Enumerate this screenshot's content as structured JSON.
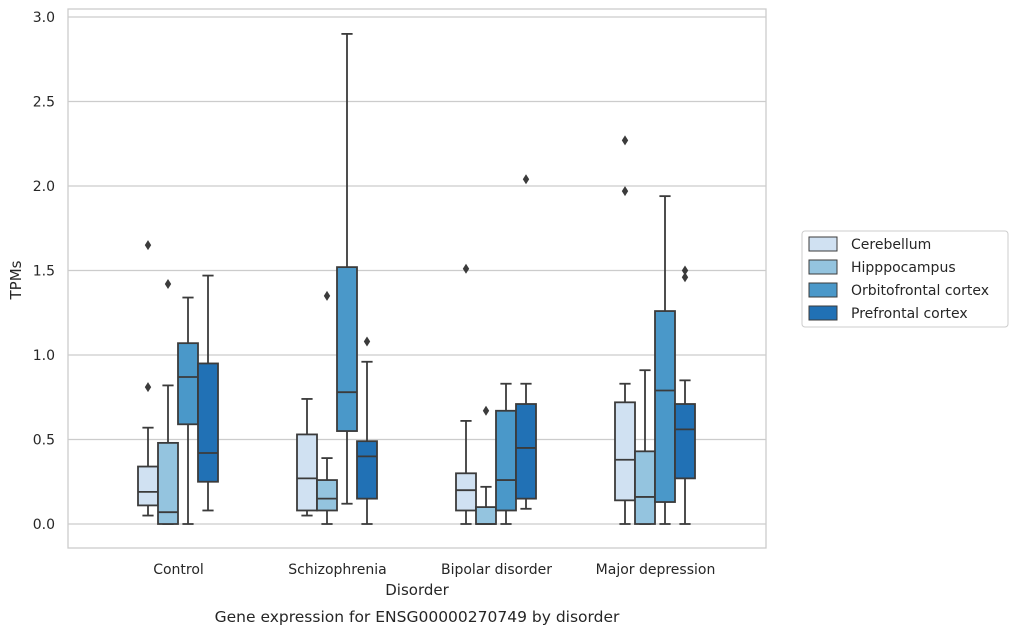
{
  "chart_data": {
    "type": "box",
    "caption": "Gene expression for ENSG00000270749 by disorder",
    "xlabel": "Disorder",
    "ylabel": "TPMs",
    "ylim": [
      -0.14,
      3.05
    ],
    "yticks": [
      0.0,
      0.5,
      1.0,
      1.5,
      2.0,
      2.5,
      3.0
    ],
    "ytick_labels": [
      "0.0",
      "0.5",
      "1.0",
      "1.5",
      "2.0",
      "2.5",
      "3.0"
    ],
    "grid": "horizontal",
    "legend_position": "right",
    "categories": [
      "Control",
      "Schizophrenia",
      "Bipolar disorder",
      "Major depression"
    ],
    "series": [
      {
        "name": "Cerebellum",
        "color": "#d0e1f2",
        "boxes": [
          {
            "whisker_low": 0.05,
            "q1": 0.11,
            "median": 0.19,
            "q3": 0.34,
            "whisker_high": 0.57,
            "outliers": [
              0.81,
              1.65
            ]
          },
          {
            "whisker_low": 0.05,
            "q1": 0.08,
            "median": 0.27,
            "q3": 0.53,
            "whisker_high": 0.74,
            "outliers": []
          },
          {
            "whisker_low": 0.0,
            "q1": 0.08,
            "median": 0.2,
            "q3": 0.3,
            "whisker_high": 0.61,
            "outliers": [
              1.51
            ]
          },
          {
            "whisker_low": 0.0,
            "q1": 0.14,
            "median": 0.38,
            "q3": 0.72,
            "whisker_high": 0.83,
            "outliers": [
              1.97,
              2.27
            ]
          }
        ]
      },
      {
        "name": "Hipppocampus",
        "color": "#94c4df",
        "boxes": [
          {
            "whisker_low": 0.0,
            "q1": 0.0,
            "median": 0.07,
            "q3": 0.48,
            "whisker_high": 0.82,
            "outliers": [
              1.42
            ]
          },
          {
            "whisker_low": 0.0,
            "q1": 0.08,
            "median": 0.15,
            "q3": 0.26,
            "whisker_high": 0.39,
            "outliers": [
              1.35
            ]
          },
          {
            "whisker_low": 0.0,
            "q1": 0.0,
            "median": 0.0,
            "q3": 0.1,
            "whisker_high": 0.22,
            "outliers": [
              0.67
            ]
          },
          {
            "whisker_low": 0.0,
            "q1": 0.0,
            "median": 0.16,
            "q3": 0.43,
            "whisker_high": 0.91,
            "outliers": []
          }
        ]
      },
      {
        "name": "Orbitofrontal cortex",
        "color": "#4a98c9",
        "boxes": [
          {
            "whisker_low": 0.0,
            "q1": 0.59,
            "median": 0.87,
            "q3": 1.07,
            "whisker_high": 1.34,
            "outliers": []
          },
          {
            "whisker_low": 0.12,
            "q1": 0.55,
            "median": 0.78,
            "q3": 1.52,
            "whisker_high": 2.9,
            "outliers": []
          },
          {
            "whisker_low": 0.0,
            "q1": 0.08,
            "median": 0.26,
            "q3": 0.67,
            "whisker_high": 0.83,
            "outliers": []
          },
          {
            "whisker_low": 0.0,
            "q1": 0.13,
            "median": 0.79,
            "q3": 1.26,
            "whisker_high": 1.94,
            "outliers": []
          }
        ]
      },
      {
        "name": "Prefrontal cortex",
        "color": "#2171b5",
        "boxes": [
          {
            "whisker_low": 0.08,
            "q1": 0.25,
            "median": 0.42,
            "q3": 0.95,
            "whisker_high": 1.47,
            "outliers": []
          },
          {
            "whisker_low": 0.0,
            "q1": 0.15,
            "median": 0.4,
            "q3": 0.49,
            "whisker_high": 0.96,
            "outliers": [
              1.08
            ]
          },
          {
            "whisker_low": 0.09,
            "q1": 0.15,
            "median": 0.45,
            "q3": 0.71,
            "whisker_high": 0.83,
            "outliers": [
              2.04
            ]
          },
          {
            "whisker_low": 0.0,
            "q1": 0.27,
            "median": 0.56,
            "q3": 0.71,
            "whisker_high": 0.85,
            "outliers": [
              1.46,
              1.5
            ]
          }
        ]
      }
    ]
  }
}
